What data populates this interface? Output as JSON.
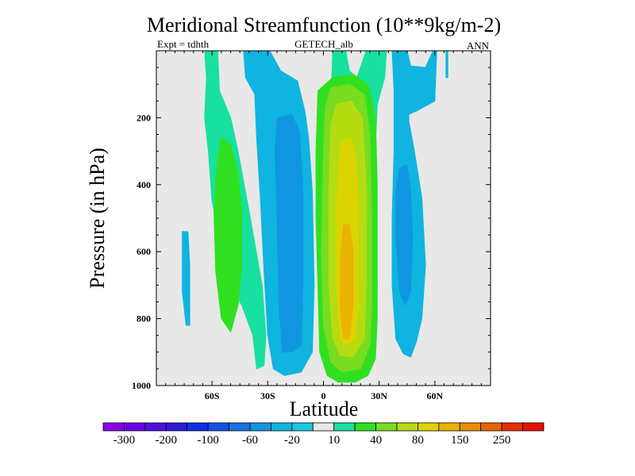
{
  "chart_data": {
    "type": "heatmap",
    "title": "Meridional Streamfunction (10**9kg/m-2)",
    "left_string": "Expt = tdhth",
    "center_string": "GETECH_alb",
    "right_string": "ANN",
    "xlabel": "Latitude",
    "ylabel": "Pressure (in hPa)",
    "xlim": [
      -90,
      90
    ],
    "ylim": [
      1000,
      0
    ],
    "x_ticks": [
      {
        "value": -60,
        "label": "60S"
      },
      {
        "value": -30,
        "label": "30S"
      },
      {
        "value": 0,
        "label": "0"
      },
      {
        "value": 30,
        "label": "30N"
      },
      {
        "value": 60,
        "label": "60N"
      }
    ],
    "y_ticks": [
      {
        "value": 200,
        "label": "200"
      },
      {
        "value": 400,
        "label": "400"
      },
      {
        "value": 600,
        "label": "600"
      },
      {
        "value": 800,
        "label": "800"
      },
      {
        "value": 1000,
        "label": "1000"
      }
    ],
    "colorbar": {
      "colors": [
        "#8b00e8",
        "#6a00e8",
        "#4e10e0",
        "#3018e0",
        "#1030e8",
        "#1050e8",
        "#1874e0",
        "#1096e0",
        "#10b4e0",
        "#18c8e0",
        "#e8e8e8",
        "#18e0a0",
        "#30e020",
        "#78dc20",
        "#b4dc10",
        "#dcd400",
        "#e8b400",
        "#e89000",
        "#e86400",
        "#e83000",
        "#e81000"
      ],
      "tick_labels": [
        "-300",
        "-200",
        "-100",
        "-60",
        "-20",
        "10",
        "40",
        "80",
        "150",
        "250"
      ]
    },
    "regions": [
      {
        "level": "10",
        "color": "#18e0a0",
        "outline": [
          [
            -64,
            0
          ],
          [
            -57,
            0
          ],
          [
            -56,
            120
          ],
          [
            -50,
            200
          ],
          [
            -46,
            300
          ],
          [
            -40,
            480
          ],
          [
            -33,
            700
          ],
          [
            -31,
            850
          ],
          [
            -32,
            940
          ],
          [
            -36,
            950
          ],
          [
            -38,
            850
          ],
          [
            -44,
            760
          ],
          [
            -50,
            700
          ],
          [
            -54,
            600
          ],
          [
            -60,
            450
          ],
          [
            -62,
            300
          ],
          [
            -64,
            200
          ],
          [
            -63,
            80
          ]
        ]
      },
      {
        "level": "40",
        "color": "#30e020",
        "outline": [
          [
            -55,
            260
          ],
          [
            -50,
            280
          ],
          [
            -46,
            360
          ],
          [
            -44,
            480
          ],
          [
            -44,
            640
          ],
          [
            -46,
            760
          ],
          [
            -50,
            840
          ],
          [
            -55,
            800
          ],
          [
            -58,
            660
          ],
          [
            -59,
            480
          ],
          [
            -57,
            320
          ]
        ]
      },
      {
        "level": "-20",
        "color": "#10b4e0",
        "outline": [
          [
            -43,
            0
          ],
          [
            -29,
            0
          ],
          [
            -23,
            60
          ],
          [
            -14,
            90
          ],
          [
            -10,
            180
          ],
          [
            -8,
            260
          ],
          [
            -6,
            420
          ],
          [
            -5,
            700
          ],
          [
            -6,
            900
          ],
          [
            -12,
            960
          ],
          [
            -21,
            970
          ],
          [
            -27,
            950
          ],
          [
            -30,
            850
          ],
          [
            -32,
            660
          ],
          [
            -34,
            440
          ],
          [
            -36,
            260
          ],
          [
            -37,
            130
          ],
          [
            -42,
            80
          ]
        ]
      },
      {
        "level": "-60",
        "color": "#1096e0",
        "outline": [
          [
            -25,
            200
          ],
          [
            -17,
            190
          ],
          [
            -13,
            240
          ],
          [
            -11,
            420
          ],
          [
            -11,
            700
          ],
          [
            -12,
            880
          ],
          [
            -17,
            900
          ],
          [
            -22,
            900
          ],
          [
            -24,
            760
          ],
          [
            -25,
            500
          ],
          [
            -26,
            300
          ]
        ]
      },
      {
        "level": "-20",
        "color": "#10b4e0",
        "outline": [
          [
            -76,
            540
          ],
          [
            -73,
            540
          ],
          [
            -72,
            640
          ],
          [
            -72,
            820
          ],
          [
            -74,
            820
          ],
          [
            -76,
            720
          ]
        ]
      },
      {
        "level": "10",
        "color": "#18e0a0",
        "outline": [
          [
            5,
            0
          ],
          [
            12,
            0
          ],
          [
            14,
            60
          ],
          [
            18,
            80
          ],
          [
            23,
            0
          ],
          [
            34,
            0
          ],
          [
            33,
            80
          ],
          [
            29,
            160
          ],
          [
            28,
            280
          ],
          [
            28,
            500
          ],
          [
            29,
            700
          ],
          [
            28,
            860
          ],
          [
            26,
            920
          ],
          [
            20,
            940
          ],
          [
            12,
            940
          ],
          [
            8,
            900
          ],
          [
            6,
            600
          ],
          [
            5,
            300
          ],
          [
            4,
            150
          ]
        ]
      },
      {
        "level": "40",
        "color": "#30e020",
        "outline": [
          [
            -3,
            120
          ],
          [
            5,
            80
          ],
          [
            16,
            70
          ],
          [
            24,
            100
          ],
          [
            28,
            200
          ],
          [
            29,
            400
          ],
          [
            29,
            600
          ],
          [
            29,
            800
          ],
          [
            28,
            920
          ],
          [
            24,
            970
          ],
          [
            17,
            990
          ],
          [
            8,
            990
          ],
          [
            2,
            970
          ],
          [
            -2,
            900
          ],
          [
            -3,
            700
          ],
          [
            -4,
            500
          ],
          [
            -4,
            300
          ]
        ]
      },
      {
        "level": "80",
        "color": "#78dc20",
        "outline": [
          [
            4,
            110
          ],
          [
            14,
            100
          ],
          [
            22,
            130
          ],
          [
            25,
            250
          ],
          [
            26,
            500
          ],
          [
            26,
            760
          ],
          [
            25,
            880
          ],
          [
            20,
            950
          ],
          [
            10,
            960
          ],
          [
            4,
            930
          ],
          [
            0,
            820
          ],
          [
            -1,
            600
          ],
          [
            0,
            300
          ],
          [
            1,
            170
          ]
        ]
      },
      {
        "level": "150",
        "color": "#b4dc10",
        "outline": [
          [
            7,
            160
          ],
          [
            15,
            150
          ],
          [
            21,
            200
          ],
          [
            23,
            400
          ],
          [
            23,
            700
          ],
          [
            22,
            860
          ],
          [
            16,
            915
          ],
          [
            9,
            910
          ],
          [
            5,
            860
          ],
          [
            3,
            700
          ],
          [
            3,
            400
          ],
          [
            4,
            220
          ]
        ]
      },
      {
        "level": "150+",
        "color": "#dcd400",
        "outline": [
          [
            10,
            270
          ],
          [
            15,
            260
          ],
          [
            18,
            340
          ],
          [
            19,
            520
          ],
          [
            19,
            760
          ],
          [
            17,
            860
          ],
          [
            13,
            880
          ],
          [
            9,
            860
          ],
          [
            7,
            700
          ],
          [
            7,
            500
          ],
          [
            8,
            340
          ]
        ]
      },
      {
        "level": "250",
        "color": "#e8b400",
        "outline": [
          [
            11,
            520
          ],
          [
            14,
            520
          ],
          [
            16,
            600
          ],
          [
            16,
            760
          ],
          [
            14,
            860
          ],
          [
            11,
            860
          ],
          [
            9,
            780
          ],
          [
            9,
            620
          ]
        ]
      },
      {
        "level": "-20",
        "color": "#10b4e0",
        "outline": [
          [
            37,
            0
          ],
          [
            45,
            0
          ],
          [
            47,
            45
          ],
          [
            55,
            50
          ],
          [
            59,
            0
          ],
          [
            61,
            0
          ],
          [
            60,
            150
          ],
          [
            50,
            180
          ],
          [
            46,
            190
          ],
          [
            46,
            210
          ],
          [
            49,
            300
          ],
          [
            53,
            440
          ],
          [
            55,
            640
          ],
          [
            53,
            800
          ],
          [
            50,
            870
          ],
          [
            47,
            915
          ],
          [
            43,
            905
          ],
          [
            39,
            860
          ],
          [
            37,
            700
          ],
          [
            37,
            500
          ],
          [
            38,
            300
          ],
          [
            38,
            210
          ],
          [
            38,
            120
          ]
        ]
      },
      {
        "level": "-60",
        "color": "#1096e0",
        "outline": [
          [
            41,
            350
          ],
          [
            45,
            340
          ],
          [
            47,
            420
          ],
          [
            48,
            560
          ],
          [
            47,
            720
          ],
          [
            44,
            760
          ],
          [
            41,
            720
          ],
          [
            39,
            560
          ],
          [
            39,
            420
          ]
        ]
      },
      {
        "level": "-20",
        "color": "#10b4e0",
        "outline": [
          [
            66,
            0
          ],
          [
            67,
            0
          ],
          [
            67,
            80
          ],
          [
            66,
            80
          ]
        ]
      }
    ]
  }
}
